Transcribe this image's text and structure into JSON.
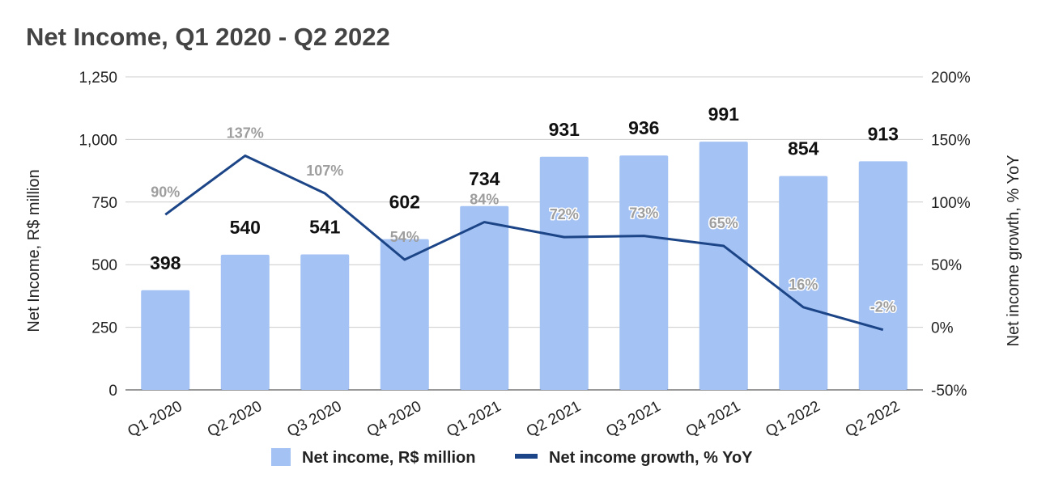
{
  "chart_data": {
    "type": "bar",
    "title": "Net Income, Q1 2020 - Q2 2022",
    "categories": [
      "Q1 2020",
      "Q2 2020",
      "Q3 2020",
      "Q4 2020",
      "Q1 2021",
      "Q2 2021",
      "Q3 2021",
      "Q4 2021",
      "Q1 2022",
      "Q2 2022"
    ],
    "series": [
      {
        "name": "Net income, R$ million",
        "type": "bar",
        "axis": "left",
        "color": "#a4c2f4",
        "values": [
          398,
          540,
          541,
          602,
          734,
          931,
          936,
          991,
          854,
          913
        ],
        "labels": [
          "398",
          "540",
          "541",
          "602",
          "734",
          "931",
          "936",
          "991",
          "854",
          "913"
        ]
      },
      {
        "name": "Net income growth, % YoY",
        "type": "line",
        "axis": "right",
        "color": "#1c4587",
        "values": [
          90,
          137,
          107,
          54,
          84,
          72,
          73,
          65,
          16,
          -2
        ],
        "labels": [
          "90%",
          "137%",
          "107%",
          "54%",
          "84%",
          "72%",
          "73%",
          "65%",
          "16%",
          "-2%"
        ]
      }
    ],
    "ylabel": "Net Income, R$ million",
    "ylim": [
      0,
      1250
    ],
    "yticks": [
      "0",
      "250",
      "500",
      "750",
      "1,000",
      "1,250"
    ],
    "y2label": "Net income growth, % YoY",
    "y2lim": [
      -50,
      200
    ],
    "y2ticks": [
      "-50%",
      "0%",
      "50%",
      "100%",
      "150%",
      "200%"
    ],
    "grid": true,
    "legend": "bottom"
  }
}
